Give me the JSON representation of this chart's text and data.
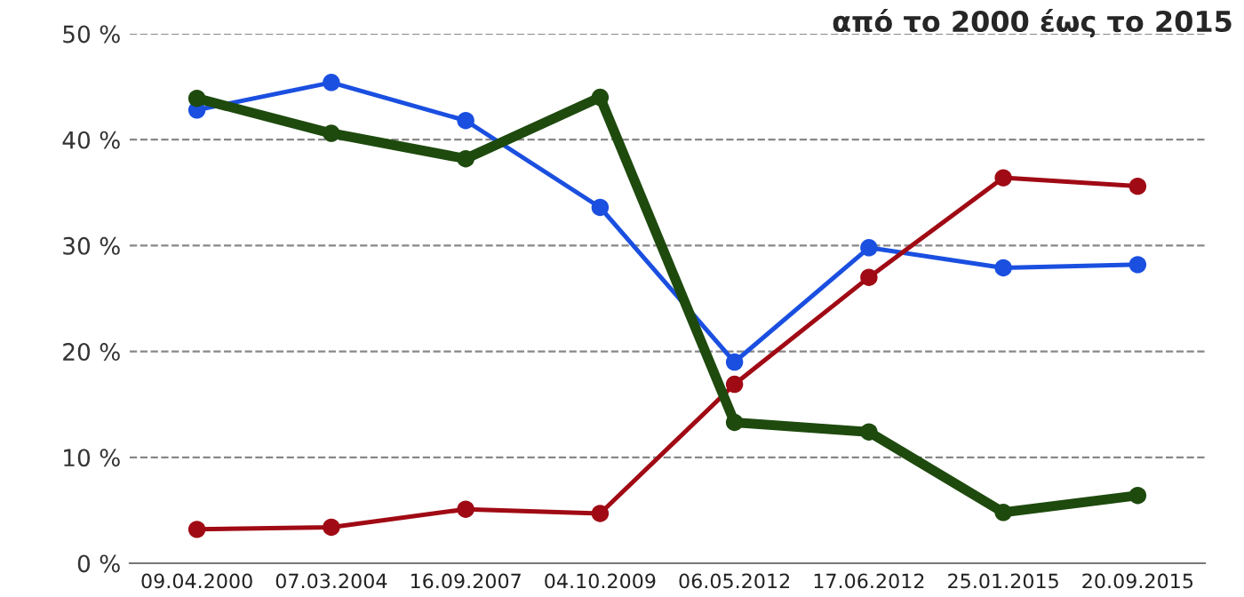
{
  "chart_data": {
    "type": "line",
    "title": "από το 2000 έως το 2015",
    "categories": [
      "09.04.2000",
      "07.03.2004",
      "16.09.2007",
      "04.10.2009",
      "06.05.2012",
      "17.06.2012",
      "25.01.2015",
      "20.09.2015"
    ],
    "series": [
      {
        "color": "#1a4fe0",
        "values": [
          42.8,
          45.4,
          41.8,
          33.6,
          19.0,
          29.8,
          27.9,
          28.2
        ]
      },
      {
        "color": "#a00a14",
        "values": [
          3.2,
          3.4,
          5.1,
          4.7,
          16.9,
          27.0,
          36.4,
          35.6
        ]
      },
      {
        "color": "#1e4a0e",
        "values": [
          43.9,
          40.6,
          38.2,
          44.0,
          13.3,
          12.4,
          4.8,
          6.4
        ]
      }
    ],
    "ylim": [
      0,
      50
    ],
    "yticks": [
      {
        "value": 0,
        "label": "0 %"
      },
      {
        "value": 10,
        "label": "10 %"
      },
      {
        "value": 20,
        "label": "20 %"
      },
      {
        "value": 30,
        "label": "30 %"
      },
      {
        "value": 40,
        "label": "40 %"
      },
      {
        "value": 50,
        "label": "50 %"
      }
    ],
    "grid": "y",
    "marker": "circle",
    "line_style": "solid",
    "legend": false
  }
}
